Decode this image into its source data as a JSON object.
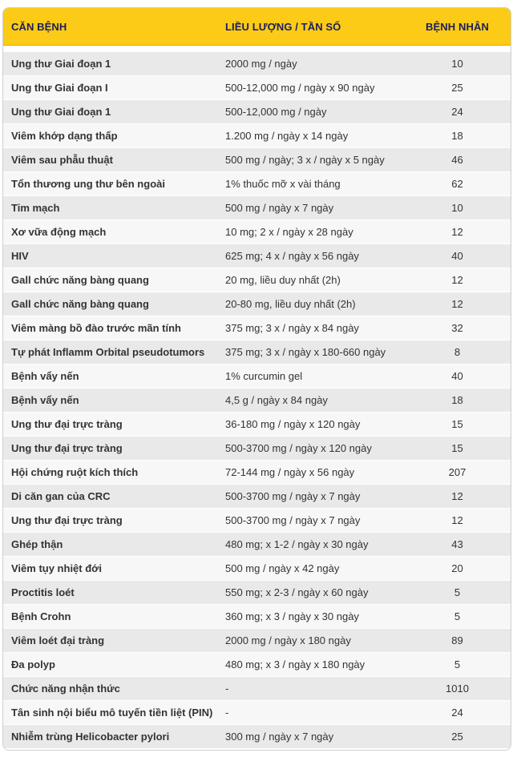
{
  "headers": {
    "disease": "CĂN BỆNH",
    "dose": "LIỀU LƯỢNG / TẦN SỐ",
    "patients": "BỆNH NHÂN"
  },
  "accent_color": "#fccb17",
  "rows": [
    {
      "disease": "Ung thư Giai đoạn 1",
      "dose": "2000 mg / ngày",
      "patients": "10"
    },
    {
      "disease": "Ung thư Giai đoạn I",
      "dose": "500-12,000 mg / ngày x 90 ngày",
      "patients": "25"
    },
    {
      "disease": "Ung thư Giai đoạn 1",
      "dose": "500-12,000 mg / ngày",
      "patients": "24"
    },
    {
      "disease": "Viêm khớp dạng thấp",
      "dose": "1.200 mg / ngày x 14 ngày",
      "patients": "18"
    },
    {
      "disease": "Viêm sau phẫu thuật",
      "dose": "500 mg / ngày; 3 x / ngày x 5 ngày",
      "patients": "46"
    },
    {
      "disease": "Tổn thương ung thư bên ngoài",
      "dose": "1% thuốc mỡ x vài tháng",
      "patients": "62"
    },
    {
      "disease": "Tim mạch",
      "dose": "500 mg / ngày x 7 ngày",
      "patients": "10"
    },
    {
      "disease": "Xơ vữa động mạch",
      "dose": "10 mg; 2 x / ngày x 28 ngày",
      "patients": "12"
    },
    {
      "disease": "HIV",
      "dose": "625 mg; 4 x / ngày x 56 ngày",
      "patients": "40"
    },
    {
      "disease": "Gall chức năng bàng quang",
      "dose": "20 mg, liều duy nhất (2h)",
      "patients": "12"
    },
    {
      "disease": "Gall chức năng bàng quang",
      "dose": "20-80 mg, liều duy nhất (2h)",
      "patients": "12"
    },
    {
      "disease": "Viêm màng bồ đào trước mãn tính",
      "dose": "375 mg; 3 x / ngày x 84 ngày",
      "patients": "32"
    },
    {
      "disease": "Tự phát Inflamm Orbital pseudotumors",
      "dose": "375 mg; 3 x / ngày x 180-660 ngày",
      "patients": "8"
    },
    {
      "disease": "Bệnh vẩy nến",
      "dose": "1% curcumin gel",
      "patients": "40"
    },
    {
      "disease": "Bệnh vẩy nến",
      "dose": "4,5 g / ngày x 84 ngày",
      "patients": "18"
    },
    {
      "disease": "Ung thư đại trực tràng",
      "dose": "36-180 mg / ngày x 120 ngày",
      "patients": "15"
    },
    {
      "disease": "Ung thư đại trực tràng",
      "dose": "500-3700 mg / ngày x 120 ngày",
      "patients": "15"
    },
    {
      "disease": "Hội chứng ruột kích thích",
      "dose": "72-144 mg / ngày x 56 ngày",
      "patients": "207"
    },
    {
      "disease": "Di căn gan của CRC",
      "dose": "500-3700 mg / ngày x 7 ngày",
      "patients": "12"
    },
    {
      "disease": "Ung thư đại trực tràng",
      "dose": "500-3700 mg / ngày x 7 ngày",
      "patients": "12"
    },
    {
      "disease": "Ghép thận",
      "dose": "480 mg; x 1-2 / ngày x 30 ngày",
      "patients": "43"
    },
    {
      "disease": "Viêm tụy nhiệt đới",
      "dose": "500 mg / ngày x 42 ngày",
      "patients": "20"
    },
    {
      "disease": "Proctitis loét",
      "dose": "550 mg; x 2-3 / ngày x 60 ngày",
      "patients": "5"
    },
    {
      "disease": "Bệnh Crohn",
      "dose": "360 mg; x 3 / ngày x 30 ngày",
      "patients": "5"
    },
    {
      "disease": "Viêm loét đại tràng",
      "dose": "2000 mg / ngày x 180 ngày",
      "patients": "89"
    },
    {
      "disease": "Đa polyp",
      "dose": "480 mg; x 3 / ngày x 180 ngày",
      "patients": "5"
    },
    {
      "disease": "Chức năng nhận thức",
      "dose": "-",
      "patients": "1010"
    },
    {
      "disease": "Tân sinh nội biểu mô tuyến tiền liệt (PIN)",
      "dose": "-",
      "patients": "24"
    },
    {
      "disease": "Nhiễm trùng Helicobacter pylori",
      "dose": "300 mg / ngày x 7 ngày",
      "patients": "25"
    }
  ]
}
